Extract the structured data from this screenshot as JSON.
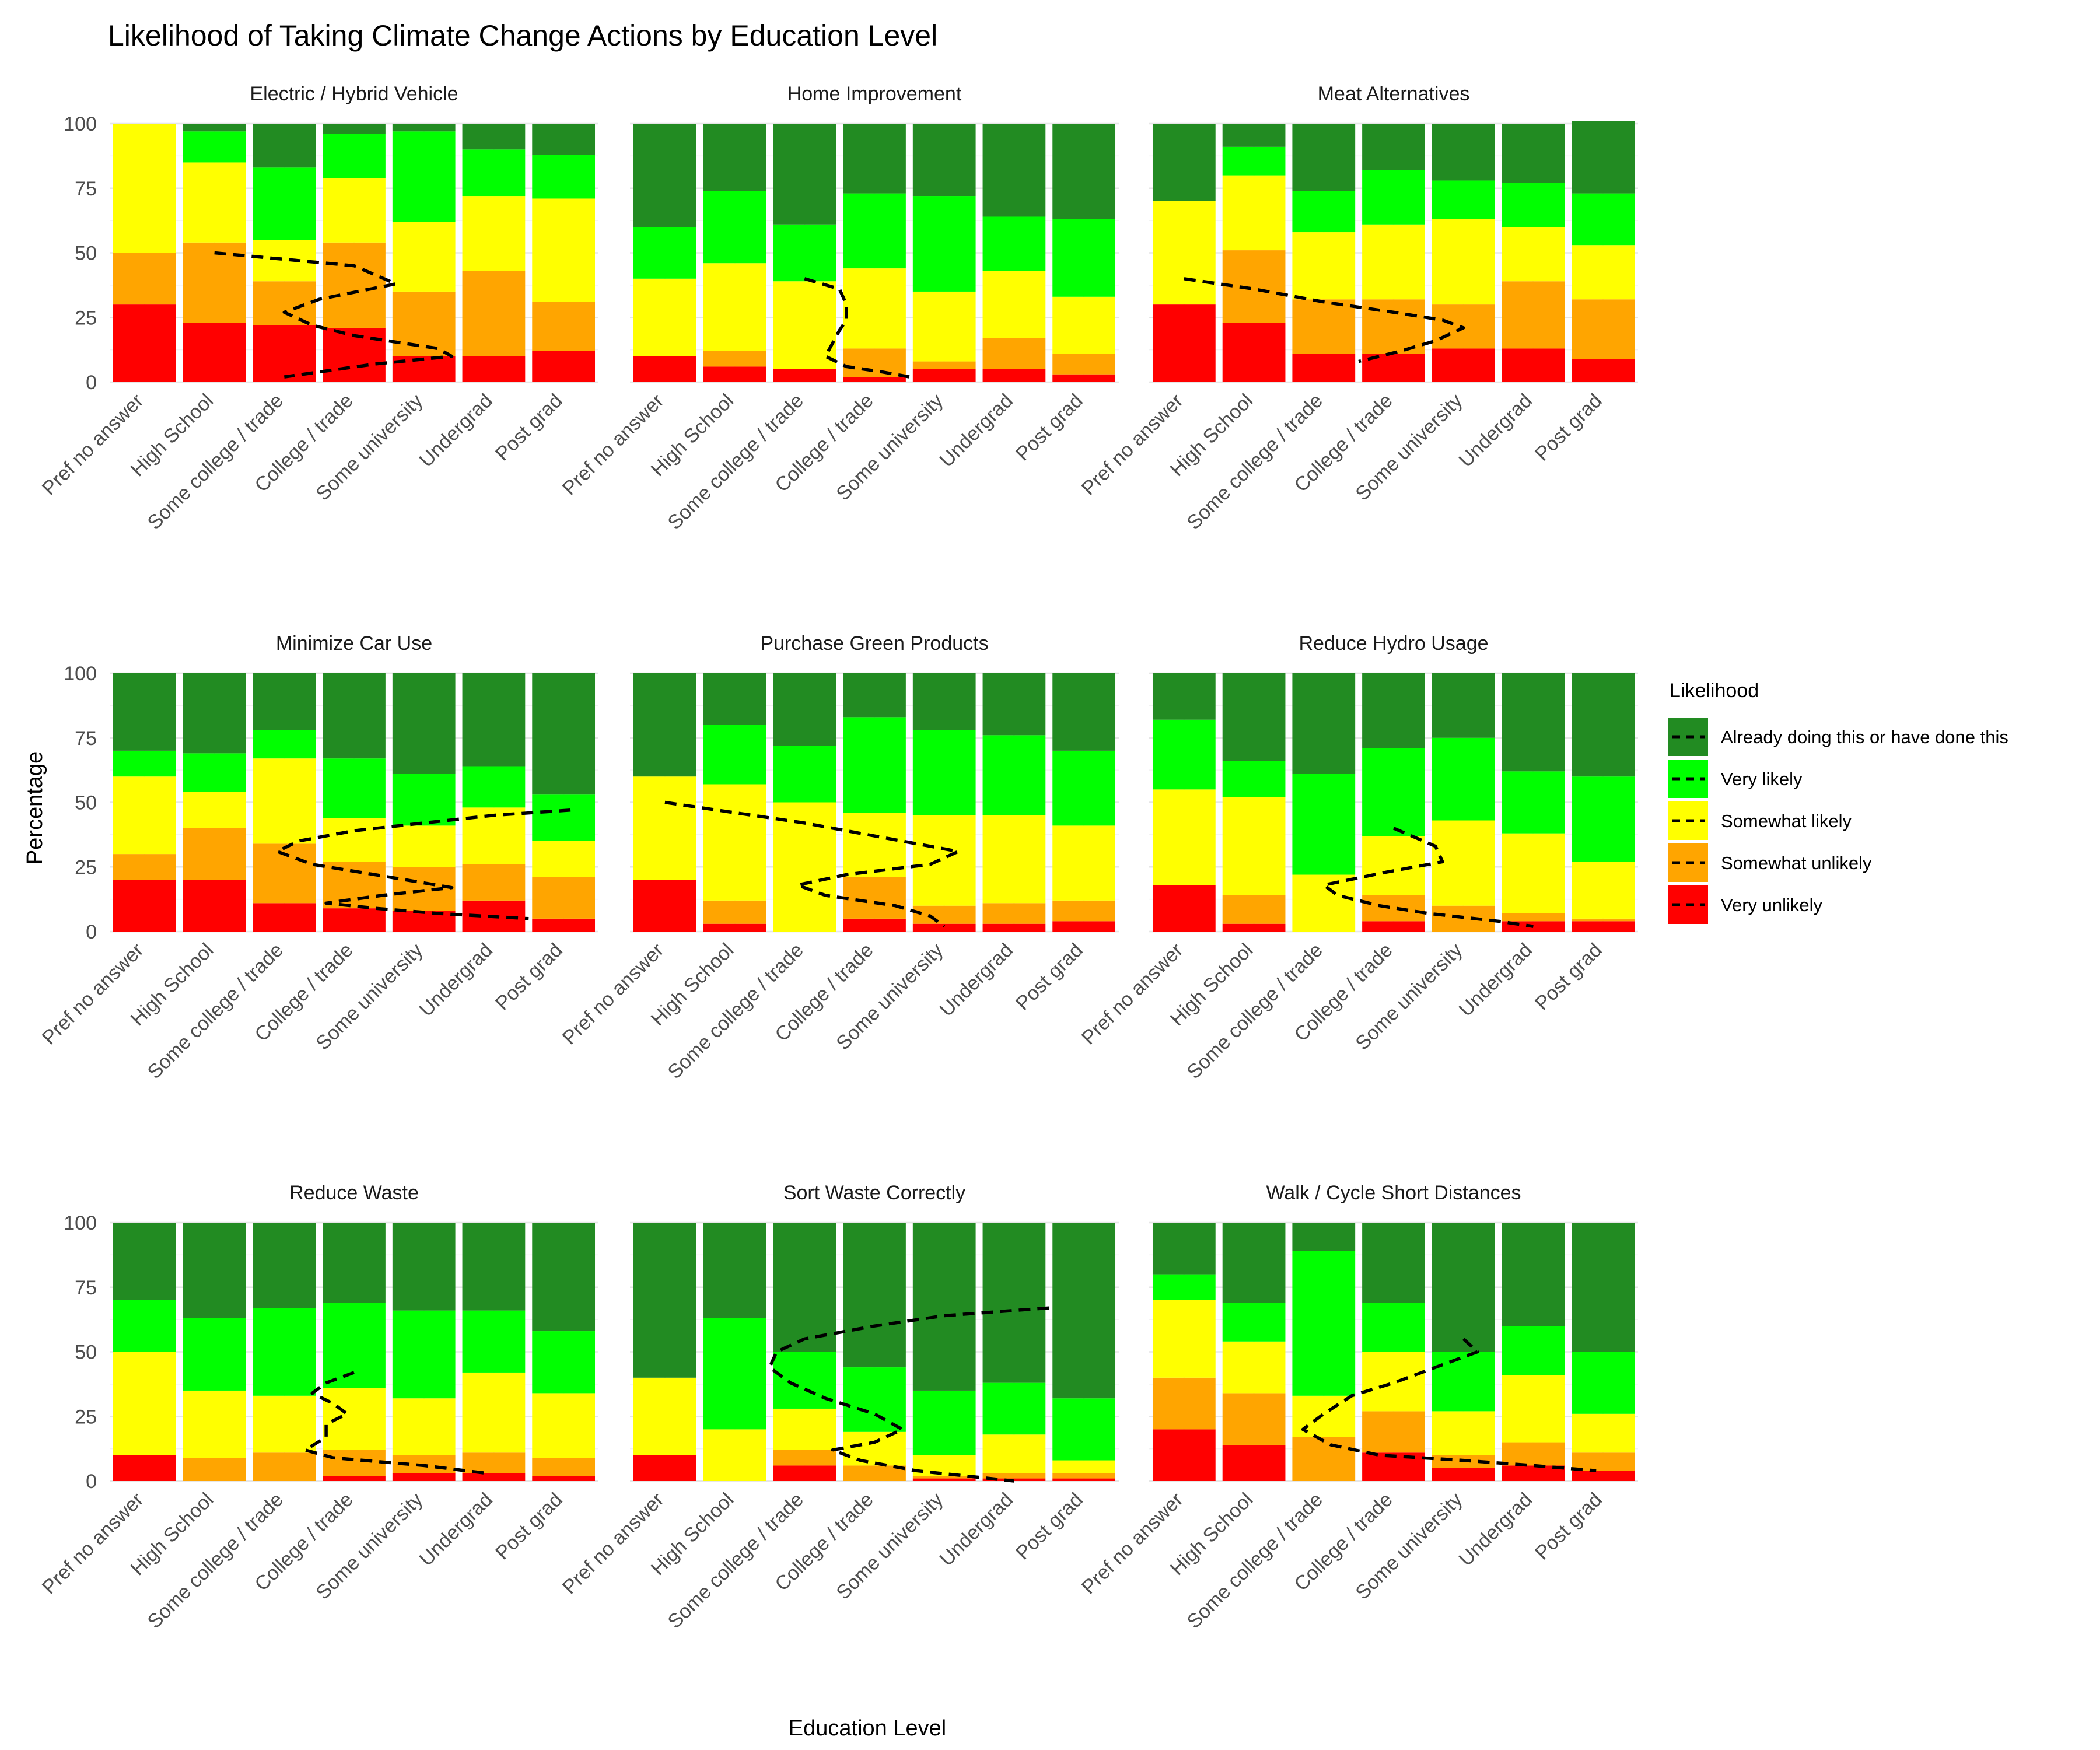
{
  "chart_data": {
    "type": "bar",
    "stacked": true,
    "percent": true,
    "title": "Likelihood of Taking Climate Change Actions by Education Level",
    "xlabel": "Education Level",
    "ylabel": "Percentage",
    "ylim": [
      0,
      100
    ],
    "yticks": [
      0,
      25,
      50,
      75,
      100
    ],
    "grid": true,
    "legend_position": "right",
    "legend_title": "Likelihood",
    "categories": [
      "Pref no answer",
      "High School",
      "Some college / trade",
      "College / trade",
      "Some university",
      "Undergrad",
      "Post grad"
    ],
    "levels": [
      "Already doing this or have done this",
      "Very likely",
      "Somewhat likely",
      "Somewhat unlikely",
      "Very unlikely"
    ],
    "colors": {
      "Already doing this or have done this": "#228B22",
      "Very likely": "#00FF00",
      "Somewhat likely": "#FFFF00",
      "Somewhat unlikely": "#FFA500",
      "Very unlikely": "#FF0000"
    },
    "panels": [
      {
        "title": "Electric / Hybrid Vehicle",
        "stack_order_bottom_to_top": [
          "Very unlikely",
          "Somewhat unlikely",
          "Somewhat likely",
          "Very likely",
          "Already doing this or have done this"
        ],
        "values": [
          [
            30,
            20,
            50,
            0,
            0
          ],
          [
            23,
            31,
            31,
            12,
            3
          ],
          [
            22,
            17,
            16,
            28,
            17
          ],
          [
            21,
            33,
            25,
            17,
            4
          ],
          [
            10,
            25,
            27,
            35,
            3
          ],
          [
            10,
            33,
            29,
            18,
            10
          ],
          [
            12,
            19,
            40,
            17,
            12
          ]
        ],
        "dashed_line": [
          [
            2,
            50
          ],
          [
            4,
            45
          ],
          [
            4.6,
            38
          ],
          [
            3.5,
            32
          ],
          [
            3.0,
            27
          ],
          [
            3.4,
            22
          ],
          [
            4.0,
            18
          ],
          [
            5.2,
            13
          ],
          [
            5.4,
            10
          ],
          [
            4.3,
            7
          ],
          [
            3.0,
            2
          ]
        ]
      },
      {
        "title": "Home Improvement",
        "stack_order_bottom_to_top": [
          "Very unlikely",
          "Somewhat unlikely",
          "Somewhat likely",
          "Very likely",
          "Already doing this or have done this"
        ],
        "values": [
          [
            10,
            0,
            30,
            20,
            40
          ],
          [
            6,
            6,
            34,
            28,
            26
          ],
          [
            5,
            0,
            34,
            22,
            39
          ],
          [
            2,
            11,
            31,
            29,
            27
          ],
          [
            5,
            3,
            27,
            37,
            28
          ],
          [
            5,
            12,
            26,
            21,
            36
          ],
          [
            3,
            8,
            22,
            30,
            37
          ]
        ],
        "dashed_line": [
          [
            3.0,
            40
          ],
          [
            3.5,
            36
          ],
          [
            3.6,
            30
          ],
          [
            3.6,
            24
          ],
          [
            3.5,
            20
          ],
          [
            3.4,
            15
          ],
          [
            3.3,
            10
          ],
          [
            3.6,
            6
          ],
          [
            4.1,
            4
          ],
          [
            4.5,
            2
          ]
        ]
      },
      {
        "title": "Meat Alternatives",
        "stack_order_bottom_to_top": [
          "Very unlikely",
          "Somewhat unlikely",
          "Somewhat likely",
          "Very likely",
          "Already doing this or have done this"
        ],
        "values": [
          [
            30,
            0,
            40,
            0,
            30
          ],
          [
            23,
            28,
            29,
            11,
            9
          ],
          [
            11,
            21,
            26,
            16,
            26
          ],
          [
            11,
            21,
            29,
            21,
            18
          ],
          [
            13,
            17,
            33,
            15,
            22
          ],
          [
            13,
            26,
            21,
            17,
            23
          ],
          [
            9,
            23,
            21,
            20,
            28
          ]
        ],
        "dashed_line": [
          [
            1,
            40
          ],
          [
            2,
            36
          ],
          [
            3,
            31
          ],
          [
            4,
            27
          ],
          [
            4.7,
            24
          ],
          [
            5,
            21
          ],
          [
            4.6,
            16
          ],
          [
            4.1,
            12
          ],
          [
            3.5,
            8
          ]
        ]
      },
      {
        "title": "Minimize Car Use",
        "stack_order_bottom_to_top": [
          "Very unlikely",
          "Somewhat unlikely",
          "Somewhat likely",
          "Very likely",
          "Already doing this or have done this"
        ],
        "values": [
          [
            20,
            10,
            30,
            10,
            30
          ],
          [
            20,
            20,
            14,
            15,
            31
          ],
          [
            11,
            23,
            33,
            11,
            22
          ],
          [
            9,
            18,
            17,
            23,
            33
          ],
          [
            8,
            17,
            16,
            20,
            39
          ],
          [
            12,
            14,
            22,
            16,
            36
          ],
          [
            5,
            16,
            14,
            18,
            47
          ]
        ],
        "dashed_line": [
          [
            7.1,
            47
          ],
          [
            6,
            45
          ],
          [
            5,
            42
          ],
          [
            4,
            39
          ],
          [
            3.2,
            35
          ],
          [
            2.9,
            31
          ],
          [
            3.4,
            26
          ],
          [
            4.3,
            22
          ],
          [
            5.4,
            17
          ],
          [
            4.4,
            14
          ],
          [
            3.6,
            11
          ],
          [
            4.3,
            9
          ],
          [
            5.2,
            7
          ],
          [
            6.5,
            5
          ]
        ]
      },
      {
        "title": "Purchase Green Products",
        "stack_order_bottom_to_top": [
          "Very unlikely",
          "Somewhat unlikely",
          "Somewhat likely",
          "Very likely",
          "Already doing this or have done this"
        ],
        "values": [
          [
            20,
            0,
            40,
            0,
            40
          ],
          [
            3,
            9,
            45,
            23,
            20
          ],
          [
            0,
            0,
            50,
            22,
            28
          ],
          [
            5,
            16,
            25,
            37,
            17
          ],
          [
            3,
            7,
            35,
            33,
            22
          ],
          [
            3,
            8,
            34,
            31,
            24
          ],
          [
            4,
            8,
            29,
            29,
            30
          ]
        ],
        "dashed_line": [
          [
            1,
            50
          ],
          [
            2,
            46
          ],
          [
            3,
            42
          ],
          [
            4,
            37
          ],
          [
            5.2,
            31
          ],
          [
            4.8,
            26
          ],
          [
            3.6,
            22
          ],
          [
            2.9,
            18
          ],
          [
            3.3,
            14
          ],
          [
            4.3,
            10
          ],
          [
            4.8,
            6
          ],
          [
            5.0,
            2
          ]
        ]
      },
      {
        "title": "Reduce Hydro Usage",
        "stack_order_bottom_to_top": [
          "Very unlikely",
          "Somewhat unlikely",
          "Somewhat likely",
          "Very likely",
          "Already doing this or have done this"
        ],
        "values": [
          [
            18,
            0,
            37,
            27,
            18
          ],
          [
            3,
            11,
            38,
            14,
            34
          ],
          [
            0,
            0,
            22,
            39,
            39
          ],
          [
            4,
            10,
            23,
            34,
            29
          ],
          [
            0,
            10,
            33,
            32,
            25
          ],
          [
            4,
            3,
            31,
            24,
            38
          ],
          [
            4,
            1,
            22,
            33,
            40
          ]
        ],
        "dashed_line": [
          [
            4.0,
            40
          ],
          [
            4.6,
            33
          ],
          [
            4.7,
            27
          ],
          [
            3.9,
            23
          ],
          [
            3.0,
            18
          ],
          [
            3.2,
            14
          ],
          [
            3.8,
            10
          ],
          [
            4.5,
            7
          ],
          [
            5.5,
            4
          ],
          [
            6.0,
            2
          ]
        ]
      },
      {
        "title": "Reduce Waste",
        "stack_order_bottom_to_top": [
          "Very unlikely",
          "Somewhat unlikely",
          "Somewhat likely",
          "Very likely",
          "Already doing this or have done this"
        ],
        "values": [
          [
            10,
            0,
            40,
            20,
            30
          ],
          [
            0,
            9,
            26,
            28,
            37
          ],
          [
            0,
            11,
            22,
            34,
            33
          ],
          [
            2,
            10,
            24,
            33,
            31
          ],
          [
            3,
            7,
            22,
            34,
            34
          ],
          [
            3,
            8,
            31,
            24,
            34
          ],
          [
            2,
            7,
            25,
            24,
            42
          ]
        ],
        "dashed_line": [
          [
            4.0,
            42
          ],
          [
            3.6,
            38
          ],
          [
            3.4,
            34
          ],
          [
            3.7,
            30
          ],
          [
            3.9,
            26
          ],
          [
            3.6,
            22
          ],
          [
            3.6,
            17
          ],
          [
            3.3,
            12
          ],
          [
            3.7,
            9
          ],
          [
            5.0,
            6
          ],
          [
            5.9,
            3
          ]
        ]
      },
      {
        "title": "Sort Waste Correctly",
        "stack_order_bottom_to_top": [
          "Very unlikely",
          "Somewhat unlikely",
          "Somewhat likely",
          "Very likely",
          "Already doing this or have done this"
        ],
        "values": [
          [
            10,
            0,
            30,
            0,
            60
          ],
          [
            0,
            0,
            20,
            43,
            37
          ],
          [
            6,
            6,
            16,
            22,
            50
          ],
          [
            0,
            6,
            13,
            25,
            56
          ],
          [
            1,
            1,
            8,
            25,
            65
          ],
          [
            1,
            2,
            15,
            20,
            62
          ],
          [
            1,
            2,
            5,
            24,
            68
          ]
        ],
        "dashed_line": [
          [
            6.5,
            67
          ],
          [
            5,
            64
          ],
          [
            4,
            60
          ],
          [
            3,
            55
          ],
          [
            2.6,
            50
          ],
          [
            2.5,
            44
          ],
          [
            2.8,
            38
          ],
          [
            3.3,
            32
          ],
          [
            4.0,
            26
          ],
          [
            4.4,
            20
          ],
          [
            4.0,
            15
          ],
          [
            3.4,
            12
          ],
          [
            3.8,
            8
          ],
          [
            4.6,
            4
          ],
          [
            6.0,
            0
          ]
        ]
      },
      {
        "title": "Walk / Cycle Short Distances",
        "stack_order_bottom_to_top": [
          "Very unlikely",
          "Somewhat unlikely",
          "Somewhat likely",
          "Very likely",
          "Already doing this or have done this"
        ],
        "values": [
          [
            20,
            20,
            30,
            10,
            20
          ],
          [
            14,
            20,
            20,
            15,
            31
          ],
          [
            0,
            17,
            16,
            56,
            11
          ],
          [
            11,
            16,
            23,
            19,
            31
          ],
          [
            5,
            5,
            17,
            23,
            50
          ],
          [
            6,
            9,
            26,
            19,
            40
          ],
          [
            4,
            7,
            15,
            24,
            50
          ]
        ],
        "dashed_line": [
          [
            5.0,
            55
          ],
          [
            5.2,
            50
          ],
          [
            4.6,
            44
          ],
          [
            4.0,
            38
          ],
          [
            3.4,
            33
          ],
          [
            3.0,
            26
          ],
          [
            2.7,
            20
          ],
          [
            3.1,
            14
          ],
          [
            3.8,
            10
          ],
          [
            5.0,
            8
          ],
          [
            6.0,
            6
          ],
          [
            6.9,
            4
          ]
        ]
      }
    ]
  }
}
